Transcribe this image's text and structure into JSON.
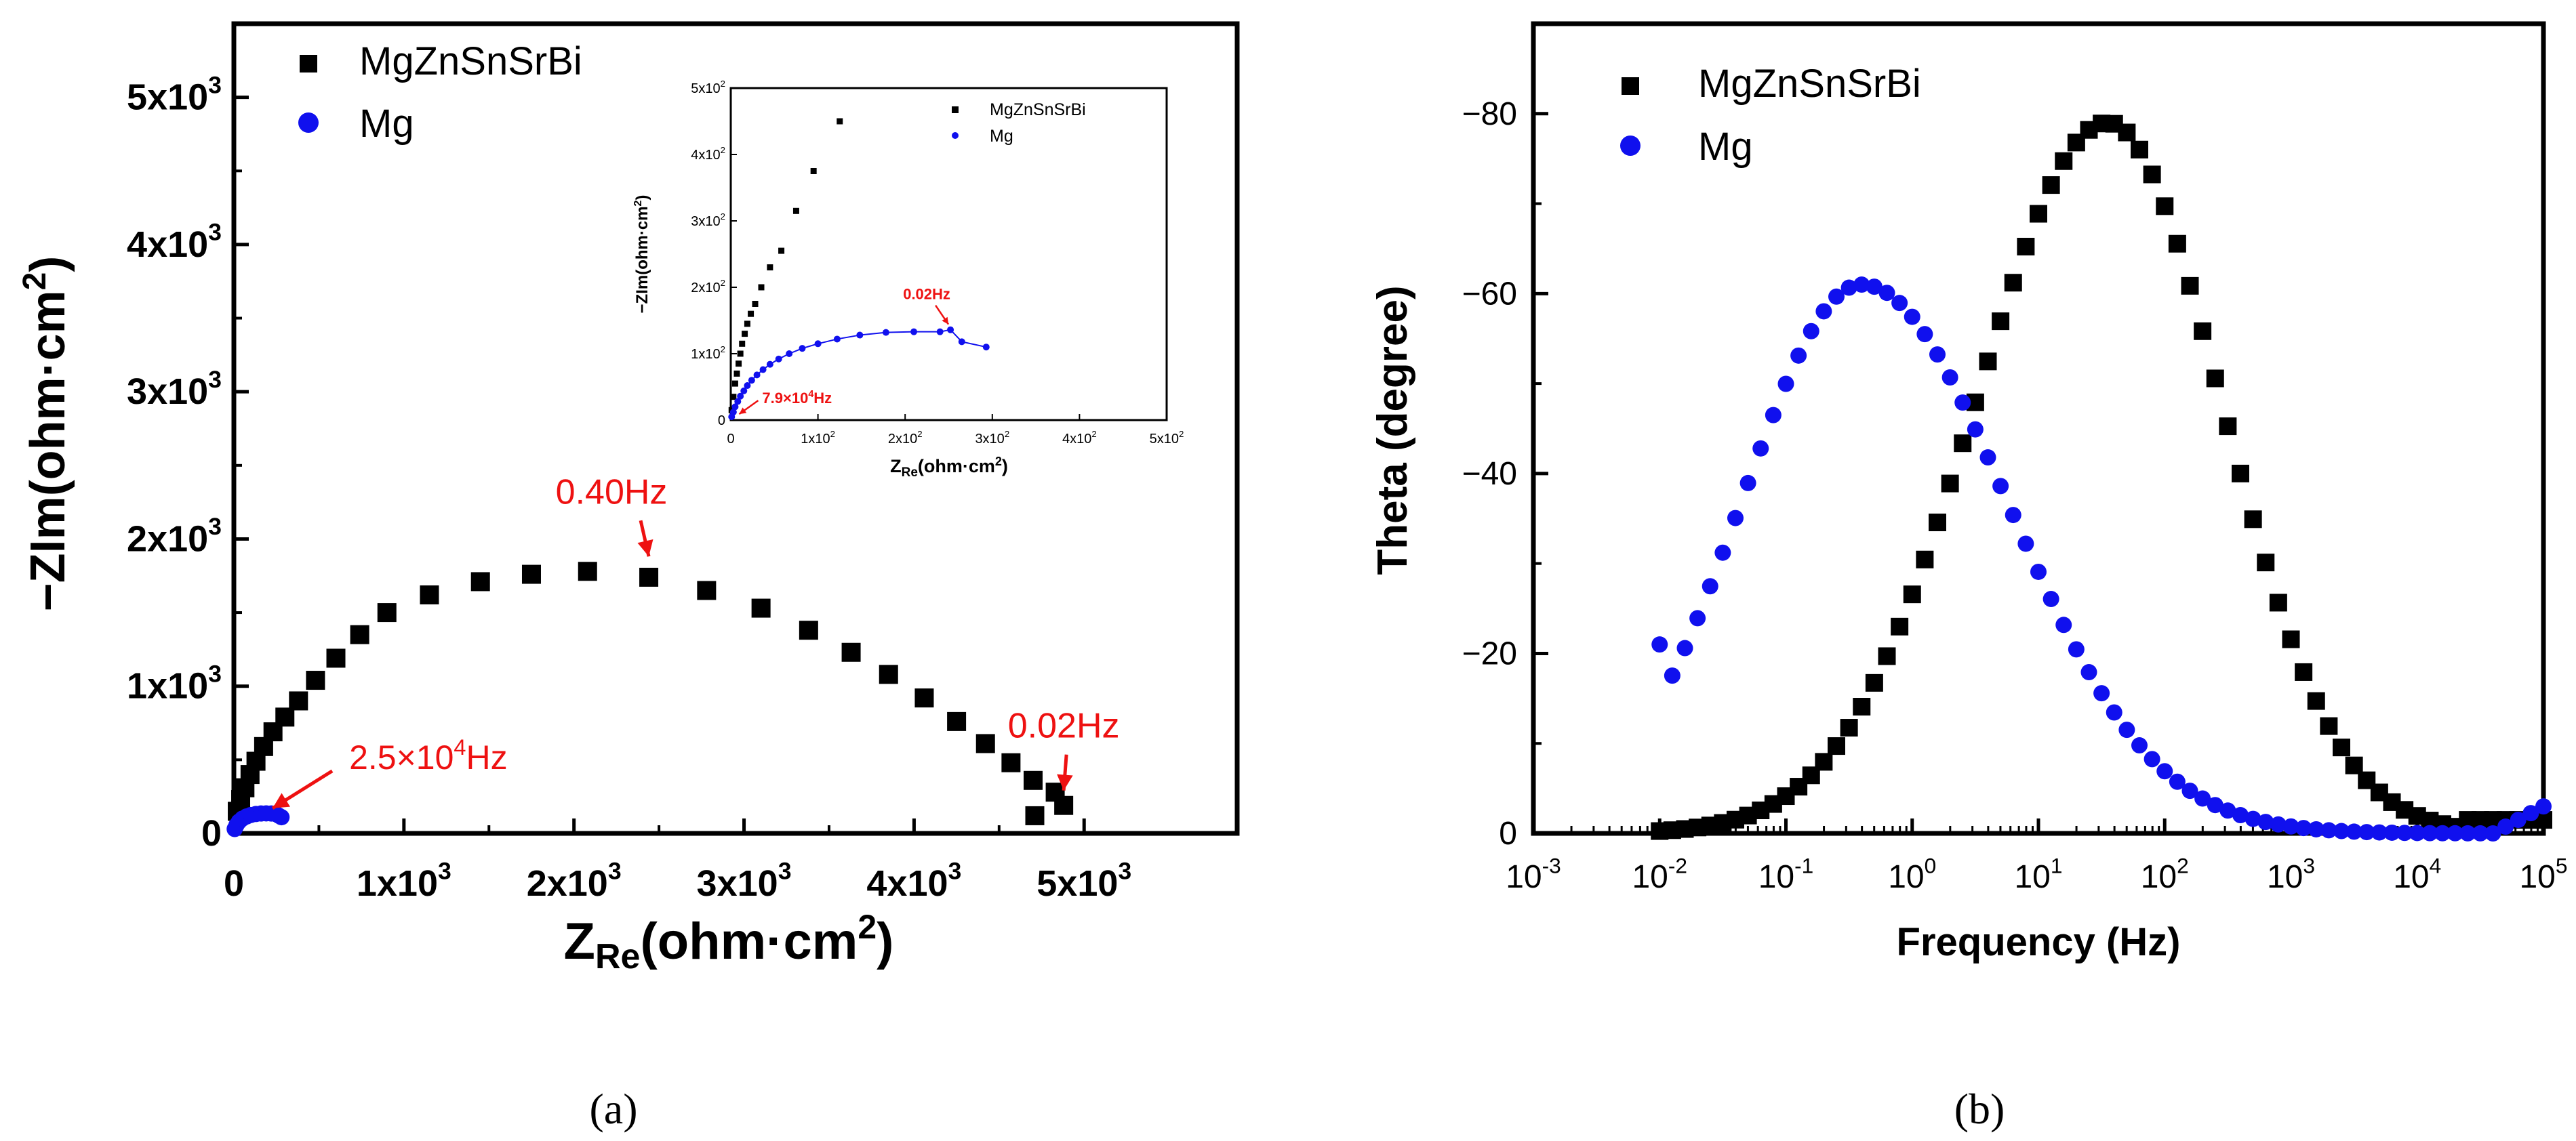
{
  "chart_data": [
    {
      "id": "nyquist",
      "type": "scatter",
      "panel_label": "(a)",
      "xlabel": "Z",
      "xlabel_sub": "Re",
      "xlabel_unit": "(ohm·cm",
      "xlabel_unit_sup": "2",
      "xlabel_close": ")",
      "ylabel": "−ZIm(ohm·cm",
      "ylabel_sup": "2",
      "ylabel_close": ")",
      "xlim": [
        0,
        5900
      ],
      "ylim": [
        0,
        5500
      ],
      "x_ticks": [
        {
          "value": 0,
          "label": "0",
          "exp": ""
        },
        {
          "value": 1000,
          "label": "1x10",
          "exp": "3"
        },
        {
          "value": 2000,
          "label": "2x10",
          "exp": "3"
        },
        {
          "value": 3000,
          "label": "3x10",
          "exp": "3"
        },
        {
          "value": 4000,
          "label": "4x10",
          "exp": "3"
        },
        {
          "value": 5000,
          "label": "5x10",
          "exp": "3"
        }
      ],
      "y_ticks": [
        {
          "value": 0,
          "label": "0",
          "exp": ""
        },
        {
          "value": 1000,
          "label": "1x10",
          "exp": "3"
        },
        {
          "value": 2000,
          "label": "2x10",
          "exp": "3"
        },
        {
          "value": 3000,
          "label": "3x10",
          "exp": "3"
        },
        {
          "value": 4000,
          "label": "4x10",
          "exp": "3"
        },
        {
          "value": 5000,
          "label": "5x10",
          "exp": "3"
        }
      ],
      "legend": [
        "MgZnSnSrBi",
        "Mg"
      ],
      "legend_position": "top-left",
      "series": [
        {
          "name": "MgZnSnSrBi",
          "marker": "square",
          "color": "#000000",
          "x": [
            20,
            40,
            65,
            95,
            130,
            175,
            230,
            300,
            380,
            480,
            600,
            740,
            900,
            1150,
            1450,
            1750,
            2080,
            2440,
            2780,
            3100,
            3380,
            3630,
            3850,
            4060,
            4250,
            4420,
            4570,
            4700,
            4830,
            4880,
            4710
          ],
          "y": [
            150,
            230,
            310,
            400,
            490,
            590,
            690,
            790,
            900,
            1040,
            1190,
            1350,
            1500,
            1620,
            1710,
            1760,
            1780,
            1740,
            1650,
            1530,
            1380,
            1230,
            1080,
            920,
            760,
            610,
            480,
            360,
            280,
            190,
            120
          ]
        },
        {
          "name": "Mg",
          "marker": "circle",
          "color": "#1010ee",
          "x": [
            5,
            15,
            30,
            50,
            75,
            100,
            130,
            160,
            190,
            220,
            250,
            265,
            280
          ],
          "y": [
            30,
            55,
            80,
            100,
            115,
            125,
            132,
            135,
            136,
            135,
            130,
            120,
            110
          ]
        }
      ],
      "annotations": [
        {
          "text": "0.40Hz",
          "x": 2440,
          "y": 1780,
          "dir": "up"
        },
        {
          "text": "0.02Hz",
          "x": 4880,
          "y": 190,
          "dir": "up"
        },
        {
          "text": "2.5×10",
          "exp": "4",
          "suffix": "Hz",
          "x": 100,
          "y": 125,
          "dir": "upright"
        }
      ],
      "inset": {
        "xlim": [
          0,
          500
        ],
        "ylim": [
          0,
          500
        ],
        "xlabel": "Z",
        "xlabel_sub": "Re",
        "xlabel_rest": "(ohm·cm",
        "xlabel_sup": "2",
        "xlabel_close": ")",
        "ylabel": "−ZIm(ohm·cm",
        "ylabel_sup": "2",
        "ylabel_close": ")",
        "x_ticks": [
          {
            "value": 0,
            "label": "0",
            "exp": ""
          },
          {
            "value": 100,
            "label": "1x10",
            "exp": "2"
          },
          {
            "value": 200,
            "label": "2x10",
            "exp": "2"
          },
          {
            "value": 300,
            "label": "3x10",
            "exp": "2"
          },
          {
            "value": 400,
            "label": "4x10",
            "exp": "2"
          },
          {
            "value": 500,
            "label": "5x10",
            "exp": "2"
          }
        ],
        "y_ticks": [
          {
            "value": 0,
            "label": "0",
            "exp": ""
          },
          {
            "value": 100,
            "label": "1x10",
            "exp": "2"
          },
          {
            "value": 200,
            "label": "2x10",
            "exp": "2"
          },
          {
            "value": 300,
            "label": "3x10",
            "exp": "2"
          },
          {
            "value": 400,
            "label": "4x10",
            "exp": "2"
          },
          {
            "value": 500,
            "label": "5x10",
            "exp": "2"
          }
        ],
        "legend": [
          "MgZnSnSrBi",
          "Mg"
        ],
        "series": [
          {
            "name": "MgZnSnSrBi",
            "marker": "square",
            "color": "#000000",
            "x": [
              1,
              3,
              5,
              7,
              9,
              11,
              13,
              16,
              19,
              23,
              28,
              35,
              45,
              58,
              75,
              95,
              125
            ],
            "y": [
              15,
              35,
              55,
              70,
              85,
              100,
              115,
              130,
              145,
              160,
              175,
              200,
              230,
              255,
              315,
              375,
              450
            ]
          },
          {
            "name": "Mg",
            "marker": "circle",
            "color": "#1010ee",
            "x": [
              1,
              3,
              5,
              8,
              11,
              15,
              19,
              24,
              30,
              37,
              45,
              55,
              67,
              82,
              100,
              122,
              148,
              178,
              210,
              240,
              252,
              265,
              293
            ],
            "y": [
              5,
              12,
              20,
              28,
              36,
              44,
              52,
              60,
              68,
              76,
              84,
              92,
              100,
              108,
              115,
              122,
              128,
              132,
              133,
              133,
              136,
              118,
              110
            ],
            "line": true
          }
        ],
        "annotations": [
          {
            "text": "0.02Hz",
            "x": 252,
            "y": 136,
            "dir": "up"
          },
          {
            "text": "7.9×10",
            "exp": "4",
            "suffix": "Hz",
            "x": 5,
            "y": 5,
            "dir": "upright"
          }
        ]
      }
    },
    {
      "id": "bode",
      "type": "scatter",
      "panel_label": "(b)",
      "xlabel": "Frequency (Hz)",
      "ylabel": "Theta (degree)",
      "x_scale": "log",
      "xlim_exp": [
        -3,
        5
      ],
      "ylim": [
        0,
        -90
      ],
      "x_ticks": [
        {
          "value": -3,
          "label": "10",
          "exp": "-3"
        },
        {
          "value": -2,
          "label": "10",
          "exp": "-2"
        },
        {
          "value": -1,
          "label": "10",
          "exp": "-1"
        },
        {
          "value": 0,
          "label": "10",
          "exp": "0"
        },
        {
          "value": 1,
          "label": "10",
          "exp": "1"
        },
        {
          "value": 2,
          "label": "10",
          "exp": "2"
        },
        {
          "value": 3,
          "label": "10",
          "exp": "3"
        },
        {
          "value": 4,
          "label": "10",
          "exp": "4"
        },
        {
          "value": 5,
          "label": "10",
          "exp": "5"
        }
      ],
      "y_ticks": [
        {
          "value": 0,
          "label": "0"
        },
        {
          "value": -20,
          "label": "−20"
        },
        {
          "value": -40,
          "label": "−40"
        },
        {
          "value": -60,
          "label": "−60"
        },
        {
          "value": -80,
          "label": "−80"
        }
      ],
      "legend": [
        "MgZnSnSrBi",
        "Mg"
      ],
      "legend_position": "top-left",
      "series": [
        {
          "name": "MgZnSnSrBi",
          "marker": "square",
          "color": "#000000",
          "center_log": 1.55,
          "peak": -79,
          "left_width": 1.05,
          "right_width": 0.9,
          "start_log": -2,
          "end_log": 5,
          "step_log": 0.1
        },
        {
          "name": "Mg",
          "marker": "circle",
          "color": "#1010ee",
          "center_log": -0.4,
          "peak": -61,
          "left_width": 0.95,
          "right_width": 1.15,
          "start_log": -2,
          "end_log": 5,
          "step_log": 0.1,
          "tail_up": -3
        }
      ]
    }
  ]
}
